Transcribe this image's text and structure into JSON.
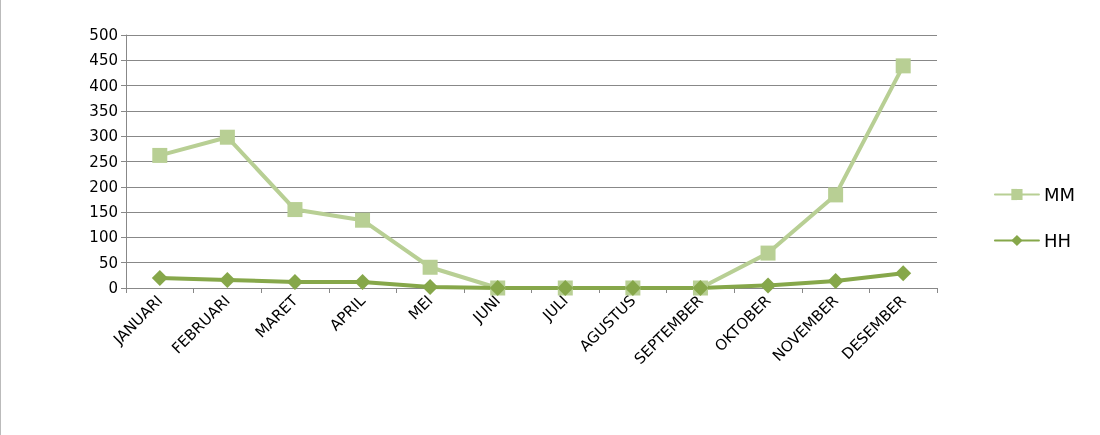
{
  "chart_data": {
    "type": "line",
    "categories": [
      "JANUARI",
      "FEBRUARI",
      "MARET",
      "APRIL",
      "MEI",
      "JUNI",
      "JULI",
      "AGUSTUS",
      "SEPTEMBER",
      "OKTOBER",
      "NOVEMBER",
      "DESEMBER"
    ],
    "series": [
      {
        "name": "MM",
        "color": "#b8cf94",
        "marker": "square",
        "values": [
          262,
          298,
          155,
          134,
          41,
          0,
          0,
          0,
          0,
          69,
          184,
          439
        ]
      },
      {
        "name": "HH",
        "color": "#86a74a",
        "marker": "diamond",
        "values": [
          20,
          16,
          12,
          12,
          2,
          0,
          0,
          0,
          0,
          5,
          14,
          29
        ]
      }
    ],
    "ylim": [
      0,
      500
    ],
    "yticks": [
      0,
      50,
      100,
      150,
      200,
      250,
      300,
      350,
      400,
      450,
      500
    ],
    "grid": "y",
    "legend": "right",
    "line_style": "solid"
  }
}
